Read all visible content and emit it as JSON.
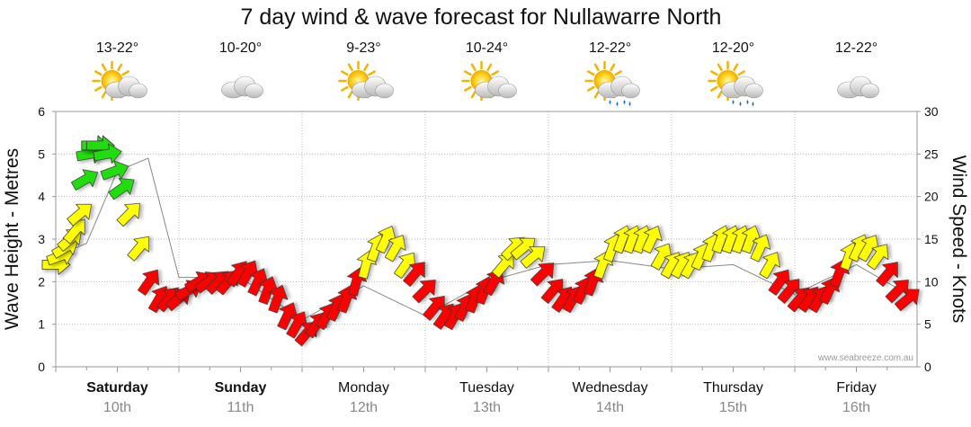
{
  "chart_data": {
    "type": "line",
    "title": "7 day wind & wave forecast for Nullawarre North",
    "ylabel": "Wave Height - Metres",
    "y2label": "Wind Speed - Knots",
    "ylim": [
      0,
      6
    ],
    "y2lim": [
      0,
      30
    ],
    "yticks": [
      "0",
      "1",
      "2",
      "3",
      "4",
      "5",
      "6"
    ],
    "y2ticks": [
      "0",
      "5",
      "10",
      "15",
      "20",
      "25",
      "30"
    ],
    "credit": "www.seabreeze.com.au",
    "days": [
      {
        "name": "Saturday",
        "date": "10th",
        "temp": "13-22°",
        "icon": "sun-cloud-icon",
        "bold": true
      },
      {
        "name": "Sunday",
        "date": "11th",
        "temp": "10-20°",
        "icon": "cloud-icon",
        "bold": true
      },
      {
        "name": "Monday",
        "date": "12th",
        "temp": "9-23°",
        "icon": "sun-cloud-icon",
        "bold": false
      },
      {
        "name": "Tuesday",
        "date": "13th",
        "temp": "10-24°",
        "icon": "sun-cloud-icon",
        "bold": false
      },
      {
        "name": "Wednesday",
        "date": "14th",
        "temp": "12-22°",
        "icon": "sun-cloud-rain-icon",
        "bold": false
      },
      {
        "name": "Thursday",
        "date": "15th",
        "temp": "12-20°",
        "icon": "sun-cloud-rain-icon",
        "bold": false
      },
      {
        "name": "Friday",
        "date": "16th",
        "temp": "12-22°",
        "icon": "cloud-icon",
        "bold": false
      }
    ],
    "series": [
      {
        "name": "Wind Speed (knots)",
        "x": [
          0.0,
          0.04,
          0.08,
          0.12,
          0.16,
          0.2,
          0.24,
          0.28,
          0.32,
          0.36,
          0.42,
          0.48,
          0.54,
          0.6,
          0.68,
          0.76,
          0.84,
          0.92,
          1.0,
          1.08,
          1.16,
          1.24,
          1.32,
          1.4,
          1.48,
          1.56,
          1.64,
          1.72,
          1.8,
          1.88,
          1.96,
          2.04,
          2.12,
          2.2,
          2.28,
          2.36,
          2.44,
          2.52,
          2.6,
          2.68,
          2.76,
          2.84,
          2.92,
          3.0,
          3.08,
          3.16,
          3.24,
          3.32,
          3.4,
          3.48,
          3.56,
          3.64,
          3.72,
          3.8,
          3.88,
          3.96,
          4.04,
          4.12,
          4.2,
          4.28,
          4.36,
          4.44,
          4.52,
          4.6,
          4.68,
          4.76,
          4.84,
          4.92,
          5.0,
          5.08,
          5.16,
          5.24,
          5.32,
          5.4,
          5.48,
          5.56,
          5.64,
          5.72,
          5.8,
          5.88,
          5.96,
          6.04,
          6.12,
          6.2,
          6.28,
          6.36,
          6.44,
          6.52,
          6.6,
          6.68,
          6.76,
          6.84,
          6.92
        ],
        "values": [
          12,
          13,
          14,
          15,
          16,
          18,
          22,
          25,
          26,
          26,
          25,
          23,
          21,
          18,
          14,
          10,
          8,
          8,
          8,
          9,
          10,
          10,
          10,
          10,
          11,
          11,
          10,
          9,
          8,
          6,
          5,
          4,
          5,
          6,
          7,
          8,
          10,
          12,
          14,
          15,
          14,
          12,
          11,
          9,
          7,
          6,
          6,
          7,
          8,
          9,
          10,
          12,
          14,
          14,
          13,
          11,
          9,
          8,
          8,
          9,
          10,
          12,
          14,
          15,
          15,
          15,
          15,
          13,
          12,
          12,
          12,
          13,
          14,
          15,
          15,
          15,
          15,
          14,
          12,
          10,
          9,
          8,
          8,
          8,
          9,
          11,
          13,
          14,
          14,
          13,
          11,
          9,
          8
        ],
        "directions": [
          270,
          250,
          240,
          230,
          220,
          230,
          240,
          260,
          270,
          270,
          260,
          250,
          235,
          225,
          220,
          215,
          210,
          220,
          230,
          240,
          240,
          235,
          225,
          220,
          215,
          210,
          205,
          200,
          200,
          205,
          210,
          220,
          215,
          210,
          205,
          200,
          195,
          195,
          200,
          205,
          210,
          215,
          220,
          225,
          220,
          215,
          210,
          205,
          200,
          200,
          210,
          220,
          225,
          230,
          230,
          225,
          220,
          215,
          210,
          205,
          200,
          200,
          200,
          200,
          200,
          200,
          205,
          210,
          210,
          210,
          210,
          205,
          200,
          200,
          200,
          200,
          200,
          205,
          210,
          215,
          220,
          220,
          215,
          210,
          205,
          200,
          200,
          205,
          210,
          215,
          220,
          225,
          230
        ]
      },
      {
        "name": "Wave Height (m)",
        "x": [
          0.0,
          0.25,
          0.5,
          0.75,
          1.0,
          1.5,
          2.0,
          2.5,
          3.0,
          3.5,
          4.0,
          4.5,
          5.0,
          5.5,
          6.0,
          6.5,
          6.92
        ],
        "values": [
          2.6,
          2.9,
          4.6,
          4.9,
          2.1,
          2.1,
          1.1,
          1.9,
          1.2,
          2.0,
          2.4,
          2.5,
          2.3,
          2.4,
          1.7,
          2.4,
          1.7
        ]
      }
    ]
  }
}
